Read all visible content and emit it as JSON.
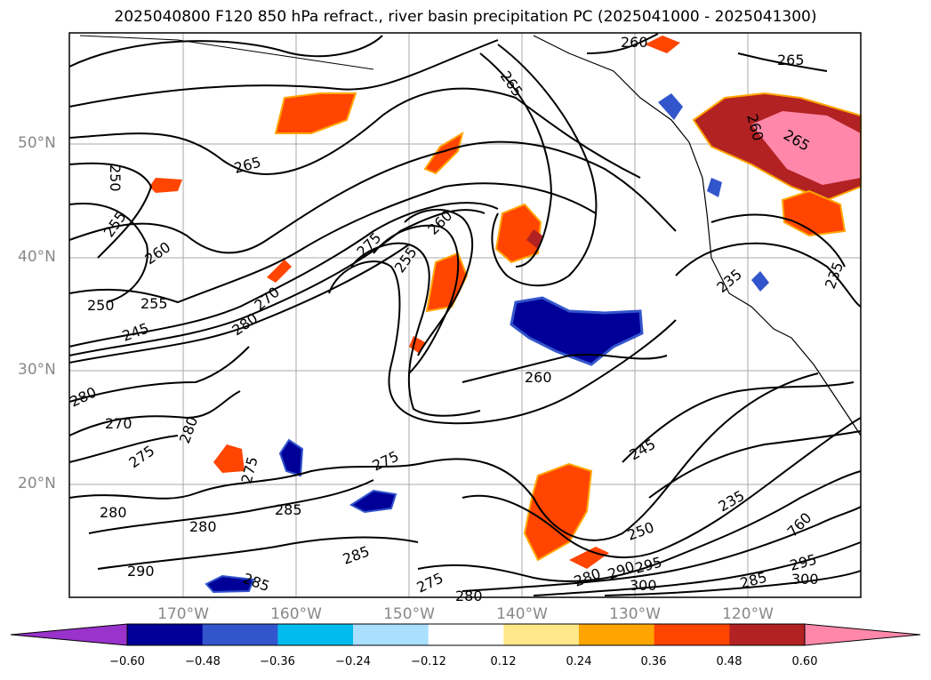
{
  "title": "2025040800 F120 850 hPa refract., river basin precipitation PC (2025041000 - 2025041300)",
  "map": {
    "lat_labels": [
      "50°N",
      "40°N",
      "30°N",
      "20°N"
    ],
    "lon_labels": [
      "170°W",
      "160°W",
      "150°W",
      "140°W",
      "130°W",
      "120°W"
    ],
    "contour_labels": [
      "265",
      "260",
      "250",
      "255",
      "260",
      "265",
      "275",
      "260",
      "255",
      "270",
      "250",
      "255",
      "245",
      "280",
      "260",
      "280",
      "270",
      "280",
      "275",
      "275",
      "275",
      "280",
      "285",
      "280",
      "285",
      "290",
      "285",
      "275",
      "280",
      "245",
      "235",
      "250",
      "760",
      "280",
      "290",
      "295",
      "300",
      "285",
      "295",
      "300",
      "235",
      "235",
      "265",
      "260",
      "265"
    ]
  },
  "colorbar": {
    "ticks": [
      "−0.60",
      "−0.48",
      "−0.36",
      "−0.24",
      "−0.12",
      "0.12",
      "0.24",
      "0.36",
      "0.48",
      "0.60"
    ],
    "colors": [
      "#9933cc",
      "#000099",
      "#3355cc",
      "#00bbee",
      "#aadfff",
      "#ffffff",
      "#ffe88a",
      "#ffa500",
      "#ff4500",
      "#b22222",
      "#ff88aa"
    ]
  }
}
